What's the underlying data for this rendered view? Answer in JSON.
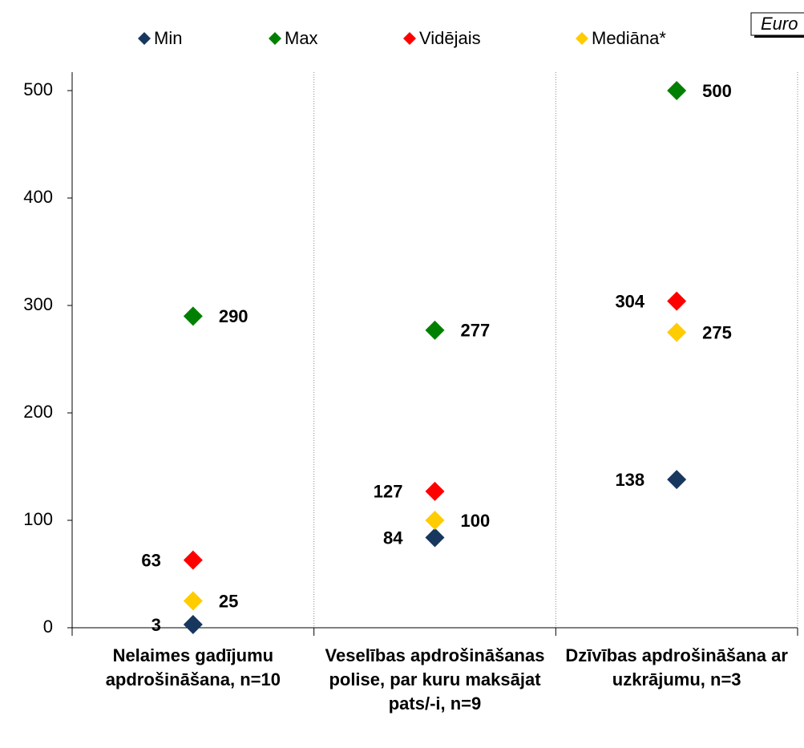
{
  "chart_data": {
    "type": "dot",
    "annotation": "Euro",
    "categories": [
      "Nelaimes gadījumu apdrošināšana, n=10",
      "Veselības apdrošināšanas polise, par kuru maksājat pats/-i, n=9",
      "Dzīvības apdrošināšana ar uzkrājumu, n=3"
    ],
    "series": [
      {
        "name": "Min",
        "color": "#17375e",
        "values": [
          3,
          84,
          138
        ]
      },
      {
        "name": "Max",
        "color": "#008000",
        "values": [
          290,
          277,
          500
        ]
      },
      {
        "name": "Vidējais",
        "color": "#ff0000",
        "values": [
          63,
          127,
          304
        ]
      },
      {
        "name": "Mediāna*",
        "color": "#ffcc00",
        "values": [
          25,
          100,
          275
        ]
      }
    ],
    "ylim": [
      0,
      500
    ],
    "yticks": [
      0,
      100,
      200,
      300,
      400,
      500
    ],
    "grid": false
  }
}
